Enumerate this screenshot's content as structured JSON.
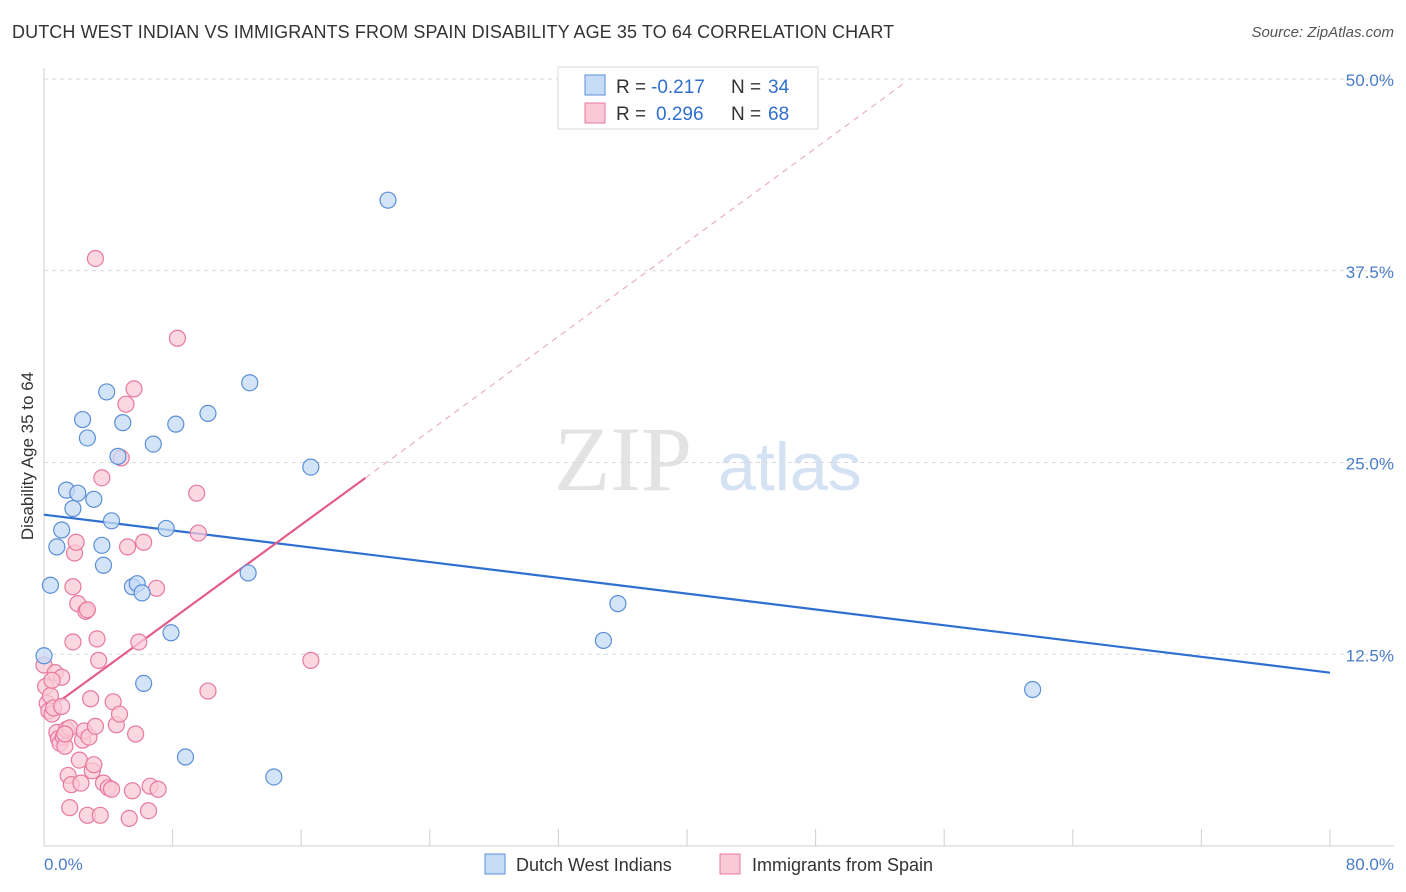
{
  "title": "DUTCH WEST INDIAN VS IMMIGRANTS FROM SPAIN DISABILITY AGE 35 TO 64 CORRELATION CHART",
  "source": "Source: ZipAtlas.com",
  "watermark": {
    "zip": "ZIP",
    "atlas": "atlas"
  },
  "colors": {
    "blue_fill": "#c6dbf5",
    "blue_stroke": "#5b8fd6",
    "blue_line": "#2f6fd0",
    "pink_fill": "#f9c9d8",
    "pink_stroke": "#e8799d",
    "pink_line": "#e35d8a",
    "grid": "#d9d9d9",
    "tick_text": "#4a7cc9"
  },
  "legend": {
    "rows": [
      {
        "r_label": "R =",
        "r_value": "-0.217",
        "n_label": "N =",
        "n_value": "34"
      },
      {
        "r_label": "R =",
        "r_value": "0.296",
        "n_label": "N =",
        "n_value": "68"
      }
    ]
  },
  "chart_data": {
    "type": "scatter",
    "title": "DUTCH WEST INDIAN VS IMMIGRANTS FROM SPAIN DISABILITY AGE 35 TO 64 CORRELATION CHART",
    "xlabel": "",
    "ylabel": "Disability Age 35 to 64",
    "xlim": [
      0,
      80
    ],
    "ylim": [
      0,
      50
    ],
    "x_tick_labels": [
      "0.0%",
      "80.0%"
    ],
    "y_ticks": [
      12.5,
      25.0,
      37.5,
      50.0
    ],
    "y_tick_labels": [
      "12.5%",
      "25.0%",
      "37.5%",
      "50.0%"
    ],
    "grid": true,
    "legend_position": "bottom",
    "series": [
      {
        "name": "Dutch West Indians",
        "R": -0.217,
        "N": 34,
        "trend": {
          "x": [
            0,
            80
          ],
          "y": [
            21.6,
            11.3
          ],
          "style": "solid"
        },
        "points": [
          [
            0.0,
            12.4
          ],
          [
            0.4,
            17.0
          ],
          [
            0.8,
            19.5
          ],
          [
            1.1,
            20.6
          ],
          [
            1.4,
            23.2
          ],
          [
            1.8,
            22.0
          ],
          [
            2.1,
            23.0
          ],
          [
            2.4,
            27.8
          ],
          [
            2.7,
            26.6
          ],
          [
            3.1,
            22.6
          ],
          [
            3.6,
            19.6
          ],
          [
            3.7,
            18.3
          ],
          [
            3.9,
            29.6
          ],
          [
            4.2,
            21.2
          ],
          [
            4.6,
            25.4
          ],
          [
            4.9,
            27.6
          ],
          [
            5.5,
            16.9
          ],
          [
            5.8,
            17.1
          ],
          [
            6.1,
            16.5
          ],
          [
            6.2,
            10.6
          ],
          [
            6.8,
            26.2
          ],
          [
            7.6,
            20.7
          ],
          [
            7.9,
            13.9
          ],
          [
            8.2,
            27.5
          ],
          [
            8.8,
            5.8
          ],
          [
            10.2,
            28.2
          ],
          [
            12.7,
            17.8
          ],
          [
            12.8,
            30.2
          ],
          [
            14.3,
            4.5
          ],
          [
            16.6,
            24.7
          ],
          [
            21.4,
            42.1
          ],
          [
            34.8,
            13.4
          ],
          [
            35.7,
            15.8
          ],
          [
            61.5,
            10.2
          ]
        ]
      },
      {
        "name": "Immigrants from Spain",
        "R": 0.296,
        "N": 68,
        "trend": {
          "x": [
            0,
            20.0
          ],
          "y": [
            8.7,
            24.0
          ],
          "style": "solid",
          "extended_x": [
            20.0,
            53.6
          ],
          "extended_y": [
            24.0,
            49.8
          ],
          "extended_style": "dashed"
        },
        "points": [
          [
            0.0,
            11.8
          ],
          [
            0.1,
            10.4
          ],
          [
            0.2,
            9.3
          ],
          [
            0.3,
            8.8
          ],
          [
            0.4,
            9.8
          ],
          [
            0.5,
            8.6
          ],
          [
            0.6,
            9.0
          ],
          [
            0.7,
            11.3
          ],
          [
            0.8,
            7.4
          ],
          [
            0.9,
            7.0
          ],
          [
            1.0,
            6.7
          ],
          [
            1.1,
            11.0
          ],
          [
            1.2,
            7.1
          ],
          [
            1.3,
            6.5
          ],
          [
            1.4,
            7.6
          ],
          [
            1.5,
            4.6
          ],
          [
            1.6,
            7.7
          ],
          [
            1.6,
            2.5
          ],
          [
            1.7,
            4.0
          ],
          [
            1.8,
            13.3
          ],
          [
            1.8,
            16.9
          ],
          [
            1.9,
            19.1
          ],
          [
            2.0,
            19.8
          ],
          [
            2.1,
            15.8
          ],
          [
            2.2,
            5.6
          ],
          [
            2.3,
            4.1
          ],
          [
            2.4,
            6.9
          ],
          [
            2.5,
            7.5
          ],
          [
            2.6,
            15.3
          ],
          [
            2.7,
            2.0
          ],
          [
            2.8,
            7.1
          ],
          [
            2.9,
            9.6
          ],
          [
            3.0,
            4.9
          ],
          [
            3.1,
            5.3
          ],
          [
            3.2,
            7.8
          ],
          [
            3.3,
            13.5
          ],
          [
            3.4,
            12.1
          ],
          [
            3.5,
            2.0
          ],
          [
            3.6,
            24.0
          ],
          [
            3.7,
            4.1
          ],
          [
            4.0,
            3.8
          ],
          [
            4.2,
            3.7
          ],
          [
            4.3,
            9.4
          ],
          [
            4.5,
            7.9
          ],
          [
            4.7,
            8.6
          ],
          [
            4.8,
            25.3
          ],
          [
            5.1,
            28.8
          ],
          [
            5.2,
            19.5
          ],
          [
            5.3,
            1.8
          ],
          [
            5.5,
            3.6
          ],
          [
            5.6,
            29.8
          ],
          [
            5.7,
            7.3
          ],
          [
            5.9,
            13.3
          ],
          [
            6.2,
            19.8
          ],
          [
            6.5,
            2.3
          ],
          [
            6.6,
            3.9
          ],
          [
            7.0,
            16.8
          ],
          [
            7.1,
            3.7
          ],
          [
            8.3,
            33.1
          ],
          [
            9.5,
            23.0
          ],
          [
            9.6,
            20.4
          ],
          [
            10.2,
            10.1
          ],
          [
            16.6,
            12.1
          ],
          [
            3.2,
            38.3
          ],
          [
            0.5,
            10.8
          ],
          [
            1.3,
            7.3
          ],
          [
            2.7,
            15.4
          ],
          [
            1.1,
            9.1
          ]
        ]
      }
    ]
  }
}
